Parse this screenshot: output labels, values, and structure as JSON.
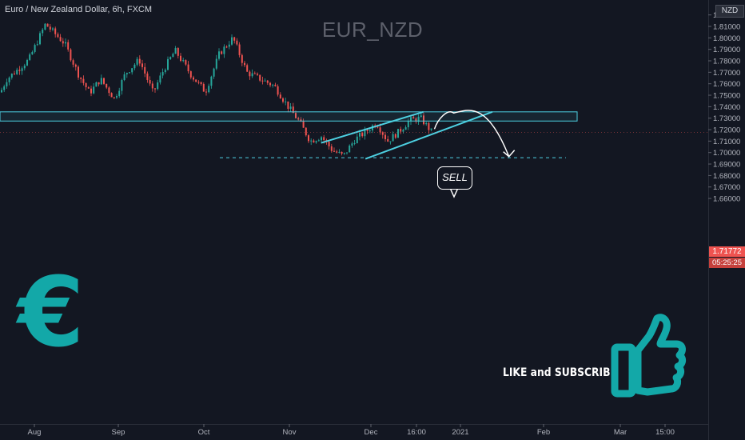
{
  "header": {
    "symbol_info": "Euro / New Zealand Dollar, 6h, FXCM",
    "watermark": "EUR_NZD",
    "currency": "NZD"
  },
  "price_scale": {
    "current_price": "1.71772",
    "countdown": "05:25:25",
    "current_price_color": "#ef5350"
  },
  "annotations": {
    "sell_label": "SELL",
    "cta_text": "LIKE and SUBSCRIBE",
    "euro_symbol": "€",
    "euro_icon": "euro-sign-icon",
    "thumb_icon": "thumbs-up-icon",
    "accent_color": "#13a8a8",
    "zone_color": "#4dd0e1",
    "resistance_zone": [
      1.7275,
      1.7355
    ],
    "support_level": 1.6955,
    "wedge_upper": [
      [
        "2020-11-13",
        1.7085
      ],
      [
        "2020-12-20",
        1.7355
      ]
    ],
    "wedge_lower": [
      [
        "2020-11-29",
        1.6945
      ],
      [
        "2021-01-14",
        1.7355
      ]
    ],
    "projection": "rise to ~1.735 around 2020-12-31 then fall to ~1.696 by 2021-01-20"
  },
  "chart_data": {
    "type": "candlestick",
    "title": "Euro / New Zealand Dollar, 6h, FXCM",
    "xlabel": "",
    "ylabel": "",
    "x_tick_labels": [
      "Aug",
      "Sep",
      "Oct",
      "Nov",
      "Dec",
      "16:00",
      "2021",
      "Feb",
      "Mar",
      "15:00"
    ],
    "y_tick_labels": [
      "1.82000",
      "1.81000",
      "1.80000",
      "1.79000",
      "1.78000",
      "1.77000",
      "1.76000",
      "1.75000",
      "1.74000",
      "1.73000",
      "1.72000",
      "1.71000",
      "1.70000",
      "1.69000",
      "1.68000",
      "1.67000",
      "1.66000"
    ],
    "ylim": [
      1.6545,
      1.8225
    ],
    "grid": false,
    "up_color": "#26a69a",
    "down_color": "#ef5350",
    "series": [
      {
        "name": "",
        "x": [
          "2020-07-15",
          "2020-07-22",
          "2020-07-30",
          "2020-08-05",
          "2020-08-12",
          "2020-08-17",
          "2020-08-21",
          "2020-08-25",
          "2020-08-30",
          "2020-09-03",
          "2020-09-08",
          "2020-09-13",
          "2020-09-17",
          "2020-09-21",
          "2020-09-27",
          "2020-10-02",
          "2020-10-07",
          "2020-10-12",
          "2020-10-17",
          "2020-10-22",
          "2020-10-27",
          "2020-11-01",
          "2020-11-05",
          "2020-11-09",
          "2020-11-13",
          "2020-11-17",
          "2020-11-21",
          "2020-11-25",
          "2020-11-29",
          "2020-12-03",
          "2020-12-07",
          "2020-12-11",
          "2020-12-15",
          "2020-12-19",
          "2020-12-23"
        ],
        "values": [
          1.729,
          1.764,
          1.781,
          1.812,
          1.795,
          1.768,
          1.752,
          1.764,
          1.747,
          1.769,
          1.781,
          1.752,
          1.773,
          1.789,
          1.767,
          1.753,
          1.786,
          1.8,
          1.77,
          1.764,
          1.758,
          1.74,
          1.727,
          1.71,
          1.714,
          1.702,
          1.697,
          1.711,
          1.718,
          1.726,
          1.71,
          1.718,
          1.728,
          1.73,
          1.718
        ]
      }
    ]
  }
}
